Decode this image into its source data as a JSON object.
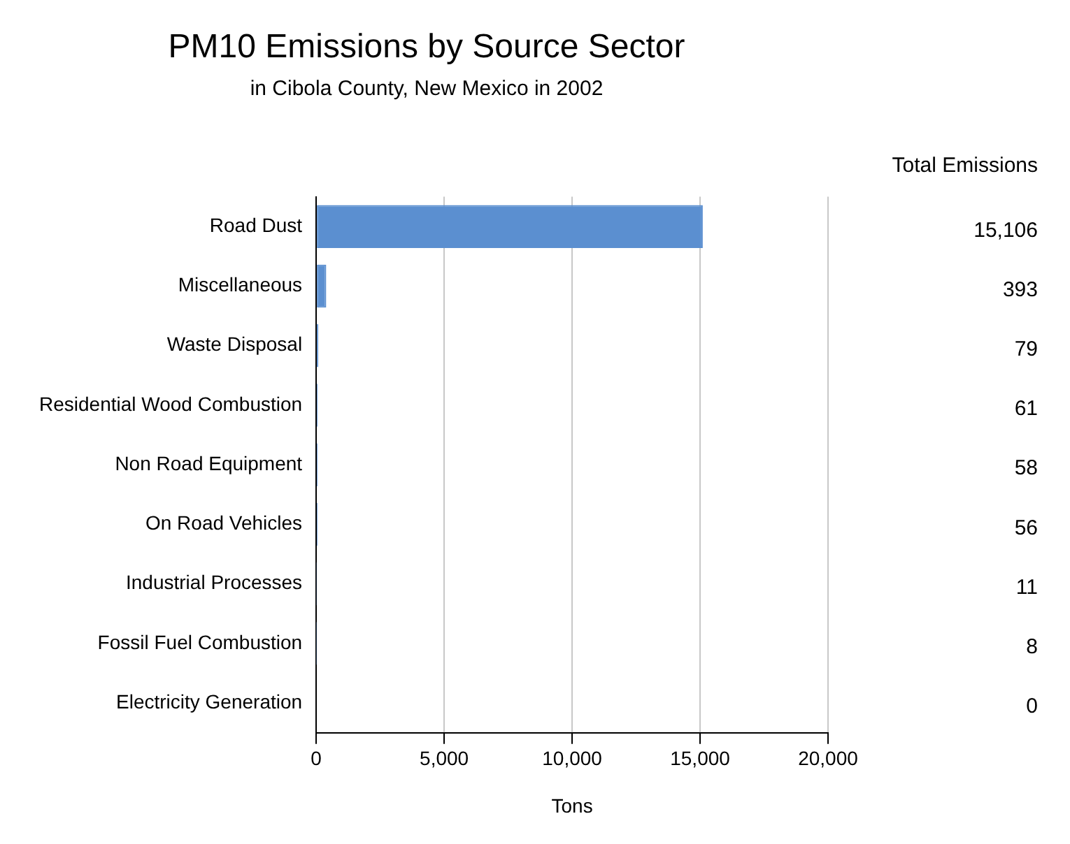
{
  "chart_data": {
    "type": "bar",
    "orientation": "horizontal",
    "title": "PM10 Emissions by Source Sector",
    "subtitle": "in Cibola County, New Mexico in 2002",
    "xlabel": "Tons",
    "categories": [
      "Road Dust",
      "Miscellaneous",
      "Waste Disposal",
      "Residential Wood Combustion",
      "Non Road Equipment",
      "On Road Vehicles",
      "Industrial Processes",
      "Fossil Fuel Combustion",
      "Electricity Generation"
    ],
    "values": [
      15106,
      393,
      79,
      61,
      58,
      56,
      11,
      8,
      0
    ],
    "value_labels": [
      "15,106",
      "393",
      "79",
      "61",
      "58",
      "56",
      "11",
      "8",
      "0"
    ],
    "color": "#5b8fd0",
    "xlim": [
      0,
      20000
    ],
    "xticks": [
      0,
      {
        "value": 5000,
        "label": "5,000"
      },
      {
        "value": 10000,
        "label": "10,000"
      },
      {
        "value": 15000,
        "label": "15,000"
      },
      {
        "value": 20000,
        "label": "20,000"
      }
    ],
    "grid": "x",
    "legend": false,
    "annotations": [
      "Total Emissions"
    ]
  }
}
